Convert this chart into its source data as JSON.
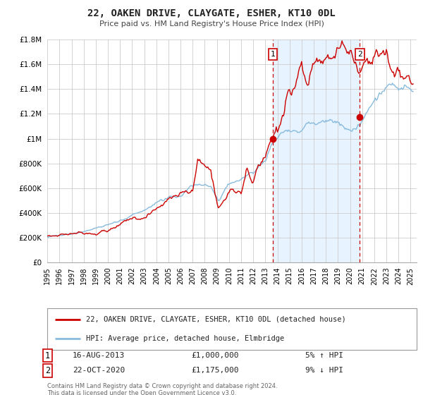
{
  "title": "22, OAKEN DRIVE, CLAYGATE, ESHER, KT10 0DL",
  "subtitle": "Price paid vs. HM Land Registry's House Price Index (HPI)",
  "ylim": [
    0,
    1800000
  ],
  "xlim_start": 1995.0,
  "xlim_end": 2025.5,
  "red_line_color": "#cc0000",
  "blue_line_color": "#88bbdd",
  "sale1_date": 2013.62,
  "sale2_date": 2020.81,
  "sale1_price": 1000000,
  "sale2_price": 1175000,
  "legend_red": "22, OAKEN DRIVE, CLAYGATE, ESHER, KT10 0DL (detached house)",
  "legend_blue": "HPI: Average price, detached house, Elmbridge",
  "annotation1_date": "16-AUG-2013",
  "annotation1_price": "£1,000,000",
  "annotation1_hpi": "5% ↑ HPI",
  "annotation2_date": "22-OCT-2020",
  "annotation2_price": "£1,175,000",
  "annotation2_hpi": "9% ↓ HPI",
  "footer1": "Contains HM Land Registry data © Crown copyright and database right 2024.",
  "footer2": "This data is licensed under the Open Government Licence v3.0.",
  "background_color": "#ffffff",
  "shade_color": "#ddeeff",
  "grid_color": "#cccccc",
  "yticks": [
    0,
    200000,
    400000,
    600000,
    800000,
    1000000,
    1200000,
    1400000,
    1600000,
    1800000
  ],
  "ytick_labels": [
    "£0",
    "£200K",
    "£400K",
    "£600K",
    "£800K",
    "£1M",
    "£1.2M",
    "£1.4M",
    "£1.6M",
    "£1.8M"
  ]
}
